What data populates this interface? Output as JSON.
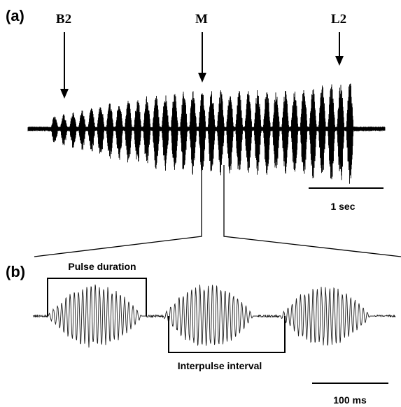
{
  "panel_a": {
    "label": "(a)",
    "markers": [
      "B2",
      "M",
      "L2"
    ],
    "scale_bar_label": "1 sec"
  },
  "panel_b": {
    "label": "(b)",
    "pulse_duration_label": "Pulse duration",
    "interpulse_interval_label": "Interpulse interval",
    "scale_bar_label": "100 ms"
  },
  "colors": {
    "ink": "#000000",
    "trace": "#000000",
    "trace_b": "#202020",
    "background": "#ffffff"
  }
}
